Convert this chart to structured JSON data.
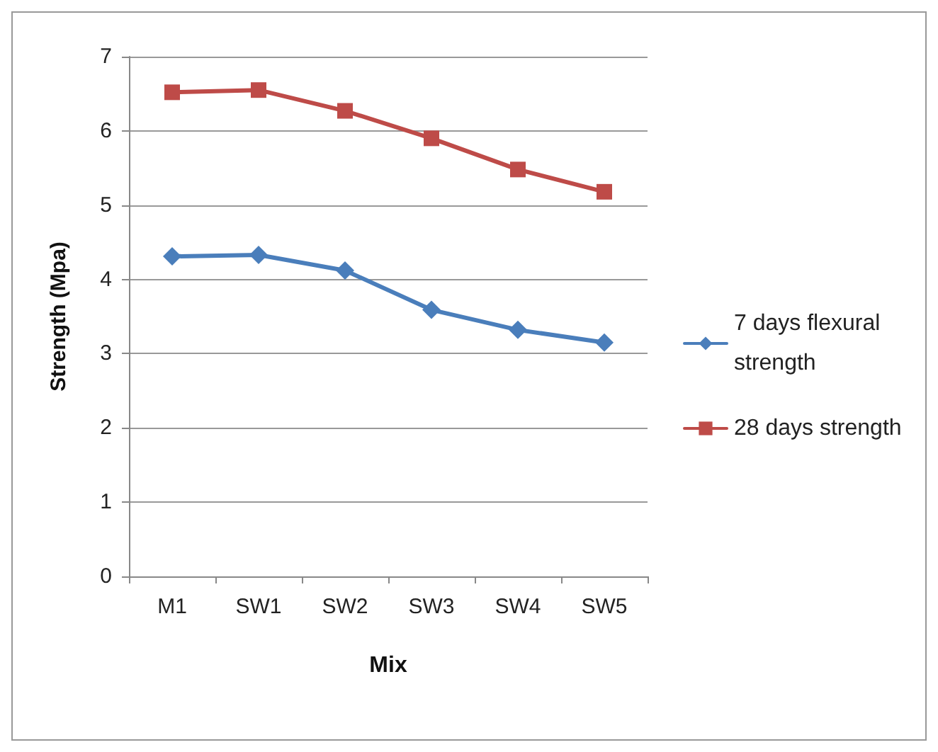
{
  "chart_data": {
    "type": "line",
    "xlabel": "Mix",
    "ylabel": "Strength (Mpa)",
    "categories": [
      "M1",
      "SW1",
      "SW2",
      "SW3",
      "SW4",
      "SW5"
    ],
    "series": [
      {
        "name": "7 days flexural strength",
        "color": "#4a7ebb",
        "marker": "diamond",
        "values": [
          4.31,
          4.33,
          4.12,
          3.59,
          3.32,
          3.15
        ]
      },
      {
        "name": "28 days strength",
        "color": "#be4b48",
        "marker": "square",
        "values": [
          6.52,
          6.55,
          6.27,
          5.9,
          5.48,
          5.18
        ]
      }
    ],
    "ylim": [
      0,
      7
    ],
    "yticks": [
      0,
      1,
      2,
      3,
      4,
      5,
      6,
      7
    ],
    "grid": "y",
    "legend": "right"
  }
}
